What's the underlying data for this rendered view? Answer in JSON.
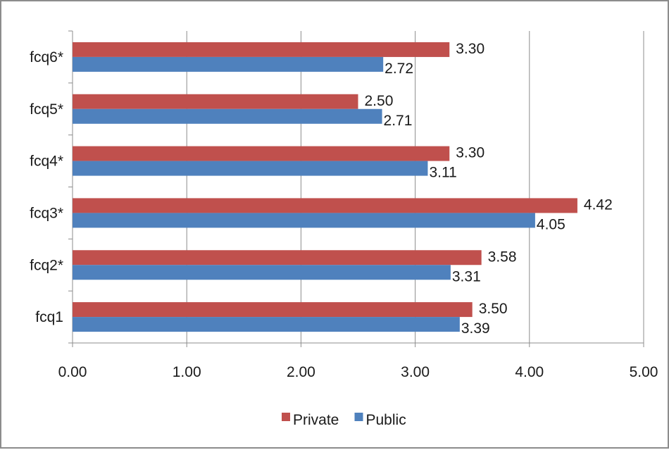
{
  "chart_data": {
    "type": "bar",
    "orientation": "horizontal",
    "categories": [
      "fcq1",
      "fcq2*",
      "fcq3*",
      "fcq4*",
      "fcq5*",
      "fcq6*"
    ],
    "series": [
      {
        "name": "Private",
        "values": [
          3.5,
          3.58,
          4.42,
          3.3,
          2.5,
          3.3
        ],
        "color": "#c0504d"
      },
      {
        "name": "Public",
        "values": [
          3.39,
          3.31,
          4.05,
          3.11,
          2.71,
          2.72
        ],
        "color": "#4f81bd"
      }
    ],
    "xticks": [
      "0.00",
      "1.00",
      "2.00",
      "3.00",
      "4.00",
      "5.00"
    ],
    "xlim": [
      0,
      5
    ],
    "grid": "vertical",
    "legend": "bottom"
  }
}
